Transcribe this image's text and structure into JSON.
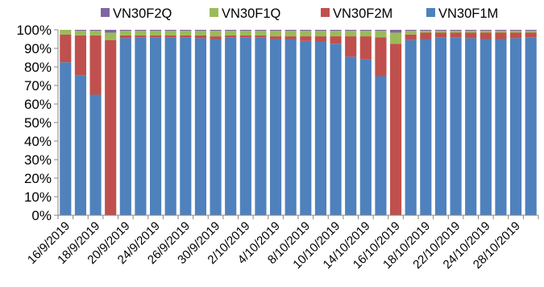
{
  "chart_data": {
    "type": "bar",
    "stacked": true,
    "percent": true,
    "ylim": [
      0,
      100
    ],
    "y_ticks": [
      "0%",
      "10%",
      "20%",
      "30%",
      "40%",
      "50%",
      "60%",
      "70%",
      "80%",
      "90%",
      "100%"
    ],
    "grid": false,
    "legend_position": "top",
    "legend_order": [
      "VN30F2Q",
      "VN30F1Q",
      "VN30F2M",
      "VN30F1M"
    ],
    "categories": [
      "16/9/2019",
      "17/9/2019",
      "18/9/2019",
      "19/9/2019",
      "20/9/2019",
      "23/9/2019",
      "24/9/2019",
      "25/9/2019",
      "26/9/2019",
      "27/9/2019",
      "30/9/2019",
      "1/10/2019",
      "2/10/2019",
      "3/10/2019",
      "4/10/2019",
      "7/10/2019",
      "8/10/2019",
      "9/10/2019",
      "10/10/2019",
      "11/10/2019",
      "14/10/2019",
      "15/10/2019",
      "16/10/2019",
      "17/10/2019",
      "18/10/2019",
      "21/10/2019",
      "22/10/2019",
      "23/10/2019",
      "24/10/2019",
      "25/10/2019",
      "28/10/2019",
      "29/10/2019"
    ],
    "x_tick_labels": [
      "16/9/2019",
      "",
      "18/9/2019",
      "",
      "20/9/2019",
      "",
      "24/9/2019",
      "",
      "26/9/2019",
      "",
      "30/9/2019",
      "",
      "2/10/2019",
      "",
      "4/10/2019",
      "",
      "8/10/2019",
      "",
      "10/10/2019",
      "",
      "14/10/2019",
      "",
      "16/10/2019",
      "",
      "18/10/2019",
      "",
      "22/10/2019",
      "",
      "24/10/2019",
      "",
      "28/10/2019",
      ""
    ],
    "series": [
      {
        "name": "VN30F1M",
        "color": "#4f81bd",
        "values": [
          82.5,
          75.5,
          65,
          0,
          95.5,
          96,
          96,
          96,
          96,
          95.5,
          95,
          96,
          96,
          96,
          95,
          95,
          94,
          93.5,
          92.5,
          85.5,
          84,
          75,
          0,
          94.5,
          95,
          96,
          96,
          95.5,
          95,
          95,
          95.5,
          96
        ]
      },
      {
        "name": "VN30F2M",
        "color": "#c0504d",
        "values": [
          15,
          21.5,
          32,
          94.5,
          1.5,
          1,
          1,
          1,
          1,
          1.5,
          1.5,
          1,
          1,
          1,
          1.5,
          1.5,
          2.5,
          3,
          4,
          11,
          12.5,
          21,
          92.5,
          3,
          3.5,
          2.5,
          2.5,
          3,
          3.5,
          3.5,
          3,
          2.5
        ]
      },
      {
        "name": "VN30F1Q",
        "color": "#9bbb59",
        "values": [
          2.5,
          2.5,
          2.5,
          4,
          2.5,
          2.5,
          2.5,
          2.5,
          2.5,
          2.5,
          3,
          2.5,
          2.5,
          2.5,
          3,
          3,
          3,
          3,
          3,
          3,
          3,
          3.5,
          6,
          2,
          1,
          1,
          1,
          1,
          1,
          1,
          1,
          1
        ]
      },
      {
        "name": "VN30F2Q",
        "color": "#8064a2",
        "values": [
          0,
          0.5,
          0.5,
          1.5,
          0.5,
          0.5,
          0.5,
          0.5,
          0.5,
          0.5,
          0.5,
          0.5,
          0.5,
          0.5,
          0.5,
          0.5,
          0.5,
          0.5,
          0.5,
          0.5,
          0.5,
          0.5,
          1.5,
          0.5,
          0.5,
          0.5,
          0.5,
          0.5,
          0.5,
          0.5,
          0.5,
          0.5
        ]
      }
    ]
  }
}
